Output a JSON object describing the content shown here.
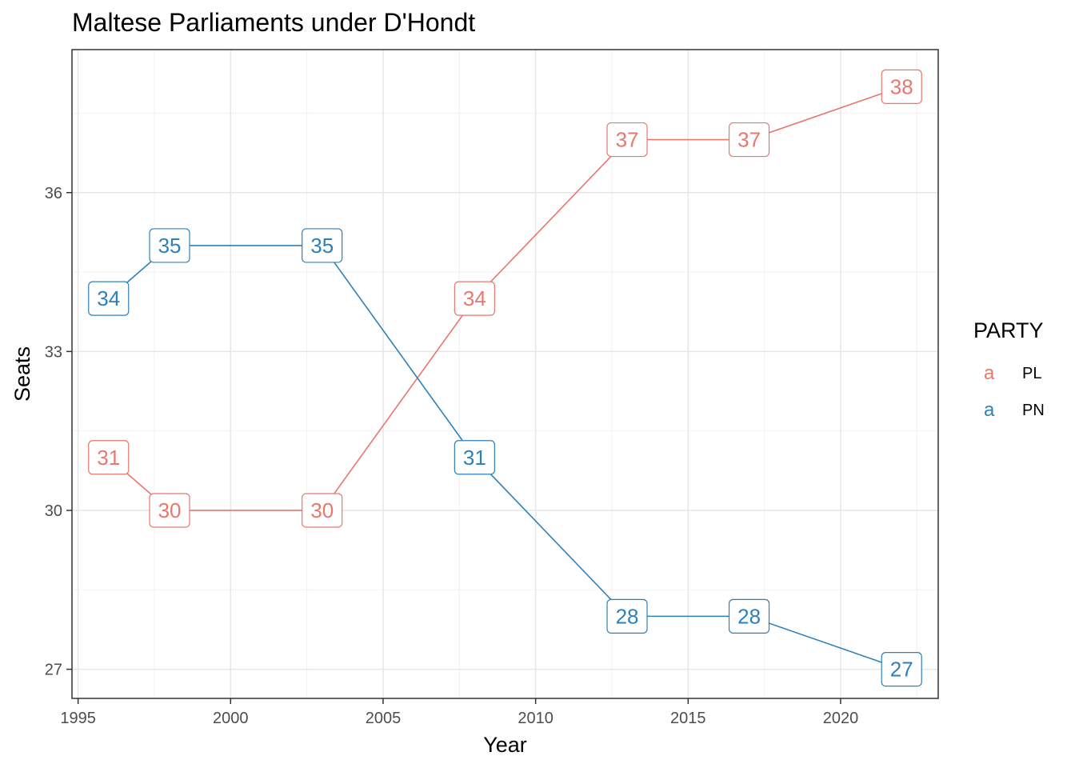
{
  "chart_data": {
    "type": "line",
    "title": "Maltese Parliaments under D'Hondt",
    "xlabel": "Year",
    "ylabel": "Seats",
    "x": [
      1996,
      1998,
      2003,
      2008,
      2013,
      2017,
      2022
    ],
    "xlim": [
      1994.8,
      2023.2
    ],
    "ylim": [
      26.45,
      38.7
    ],
    "xticks": [
      1995,
      2000,
      2005,
      2010,
      2015,
      2020
    ],
    "yticks": [
      27,
      30,
      33,
      36
    ],
    "grid": true,
    "legend": {
      "title": "PARTY",
      "position": "right",
      "key_glyph": "a"
    },
    "series": [
      {
        "name": "PL",
        "color": "#E8776E",
        "values": [
          31,
          30,
          30,
          34,
          37,
          37,
          38
        ]
      },
      {
        "name": "PN",
        "color": "#2E80BA",
        "values": [
          34,
          35,
          35,
          31,
          28,
          28,
          27
        ]
      }
    ]
  }
}
